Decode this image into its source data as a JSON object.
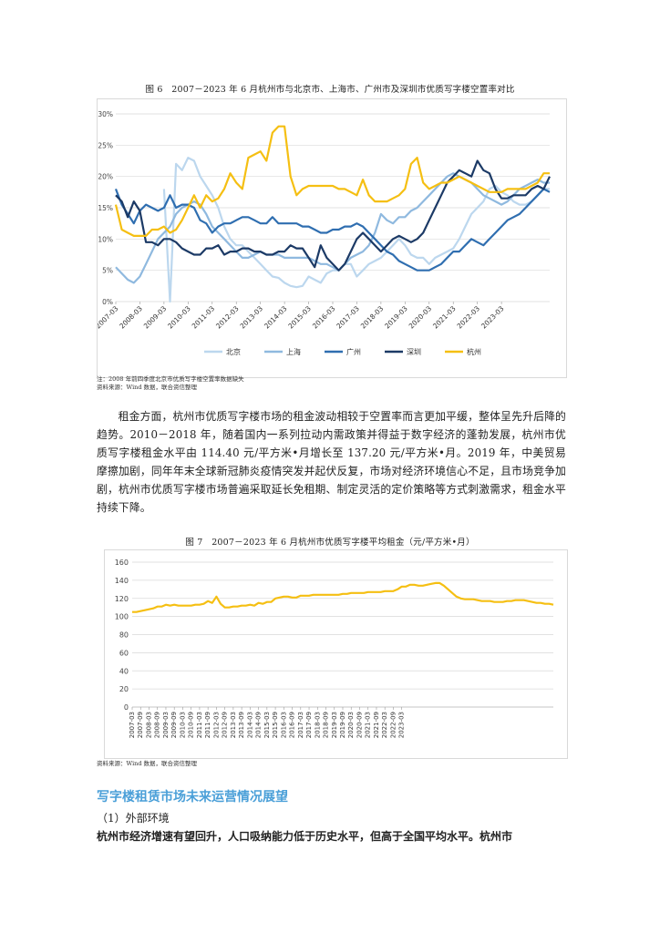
{
  "figure6": {
    "caption": "图 6　2007－2023 年 6 月杭州市与北京市、上海市、广州市及深圳市优质写字楼空置率对比",
    "note1": "注：2008 年前四季度北京市优质写字楼空置率数据缺失",
    "note2": "资料来源：Wind 数据，联合资信整理"
  },
  "paragraph": "租金方面，杭州市优质写字楼市场的租金波动相较于空置率而言更加平缓，整体呈先升后降的趋势。2010－2018 年，随着国内一系列拉动内需政策并得益于数字经济的蓬勃发展，杭州市优质写字楼租金水平由 114.40 元/平方米•月增长至 137.20 元/平方米•月。2019 年，中美贸易摩擦加剧，同年年末全球新冠肺炎疫情突发并起伏反复，市场对经济环境信心不足，且市场竞争加剧，杭州市优质写字楼市场普遍采取延长免租期、制定灵活的定价策略等方式刺激需求，租金水平持续下降。",
  "figure7": {
    "caption": "图 7　2007－2023 年 6 月杭州市优质写字楼平均租金（元/平方米•月）",
    "note": "资料来源：Wind 数据，联合资信整理"
  },
  "section": {
    "title": "写字楼租赁市场未来运营情况展望",
    "sub": "（1）外部环境",
    "bold_line": "杭州市经济增速有望回升，人口吸纳能力低于历史水平，但高于全国平均水平。杭州市"
  },
  "colors": {
    "beijing": "#bcd7ee",
    "shanghai": "#8fb9df",
    "guangzhou": "#2f6eb0",
    "shenzhen": "#1c3a66",
    "hangzhou": "#f5bf12",
    "grid": "#d9d9d9",
    "section": "#4a9fd8"
  },
  "chart_data": [
    {
      "type": "line",
      "title": "图 6　2007－2023 年 6 月杭州市与北京市、上海市、广州市及深圳市优质写字楼空置率对比",
      "ylim": [
        0,
        30
      ],
      "yticks": [
        "0%",
        "5%",
        "10%",
        "15%",
        "20%",
        "25%",
        "30%"
      ],
      "xticks": [
        "2007-03",
        "2008-03",
        "2009-03",
        "2010-03",
        "2011-03",
        "2012-03",
        "2013-03",
        "2014-03",
        "2015-03",
        "2016-03",
        "2017-03",
        "2018-03",
        "2019-03",
        "2020-03",
        "2021-03",
        "2022-03",
        "2023-03"
      ],
      "x_points_per_year": 4,
      "legend": [
        "北京",
        "上海",
        "广州",
        "深圳",
        "杭州"
      ],
      "legend_position": "bottom",
      "series": [
        {
          "name": "北京",
          "values": [
            null,
            null,
            null,
            null,
            null,
            null,
            null,
            null,
            18,
            0,
            22,
            21,
            23,
            22.5,
            20,
            18.5,
            17,
            15,
            12,
            10,
            9,
            9,
            8,
            7,
            6,
            5,
            4,
            3.8,
            3,
            2.5,
            2.3,
            2.5,
            4,
            3.5,
            3,
            4.5,
            5,
            5,
            6,
            6,
            4,
            5,
            6,
            6.5,
            7,
            8,
            9,
            10,
            9,
            7.5,
            7,
            7,
            6,
            7,
            7.5,
            8,
            8.5,
            10,
            12,
            14,
            15,
            16,
            18,
            18.5,
            17.5,
            17,
            16,
            15.5,
            15.5,
            16,
            17,
            18,
            18
          ]
        },
        {
          "name": "上海",
          "values": [
            5.5,
            4.5,
            3.5,
            3,
            4,
            6,
            8,
            10,
            11,
            12,
            14,
            15,
            15.5,
            16,
            15.5,
            14,
            12,
            11,
            10,
            9,
            8,
            7,
            7,
            7.5,
            8,
            7.5,
            7.5,
            7.5,
            7,
            7,
            7,
            7,
            7,
            6.5,
            6,
            6,
            5.5,
            5,
            6,
            7,
            7.5,
            8,
            9,
            11,
            14,
            13,
            12.5,
            13.5,
            13.5,
            14.5,
            15,
            16,
            17,
            18,
            19,
            20,
            20.5,
            20,
            19.5,
            19,
            18,
            17,
            16.5,
            16,
            15.5,
            16,
            17,
            18,
            18.5,
            19,
            19.5,
            19,
            19
          ]
        },
        {
          "name": "广州",
          "values": [
            18,
            15.5,
            14,
            12.5,
            14.5,
            15.5,
            15,
            14.5,
            15,
            17,
            15,
            15.5,
            15.5,
            15,
            13,
            12.5,
            11,
            12,
            12.5,
            12.5,
            13,
            13.5,
            13.5,
            13,
            12.5,
            12.5,
            13.5,
            12.5,
            12.5,
            12.5,
            12.5,
            12,
            12,
            11.5,
            11,
            11,
            11.5,
            11.5,
            12,
            12,
            12.5,
            12,
            11,
            10,
            9,
            8,
            7.5,
            6.5,
            6,
            5.5,
            5,
            5,
            5,
            5.5,
            6,
            7,
            8,
            8,
            9,
            10,
            9.5,
            9,
            10,
            11,
            12,
            13,
            13.5,
            14,
            15,
            16,
            17,
            18,
            17.5
          ]
        },
        {
          "name": "深圳",
          "values": [
            17,
            16,
            13.5,
            16,
            14.5,
            9.5,
            9.5,
            9,
            10,
            10,
            9.5,
            8.5,
            8,
            7.5,
            7.5,
            8.5,
            8.5,
            9,
            7.5,
            8,
            8,
            8.5,
            8.5,
            8,
            8,
            7.5,
            7.5,
            8,
            8,
            9,
            8.5,
            8.5,
            7,
            5.5,
            9,
            7,
            6,
            5,
            6,
            8,
            10,
            11,
            10,
            9,
            8,
            9,
            10,
            10.5,
            10,
            9.5,
            10,
            11,
            13,
            15,
            17,
            19,
            20,
            21,
            20.5,
            20,
            22.5,
            21,
            20.5,
            18,
            16.5,
            16.5,
            17,
            17,
            17,
            18,
            18.5,
            18,
            20
          ]
        },
        {
          "name": "杭州",
          "values": [
            15.5,
            11.5,
            11,
            10.5,
            10.5,
            10.5,
            11.5,
            11.5,
            12,
            11,
            11.5,
            13,
            15,
            17,
            15,
            17,
            16,
            16.5,
            18,
            20.5,
            19,
            18,
            23,
            23.5,
            24,
            22.5,
            27,
            28,
            28,
            20,
            17,
            18,
            18.5,
            18.5,
            18.5,
            18.5,
            18.5,
            18,
            18,
            17.5,
            17,
            19.5,
            17,
            16,
            16,
            16,
            16.5,
            17,
            18,
            22,
            23,
            19,
            18,
            18.5,
            19,
            19,
            19.5,
            20,
            19.5,
            19,
            18.5,
            18,
            17.5,
            17.5,
            17.5,
            18,
            18,
            18,
            18,
            18.5,
            19,
            20.5,
            20.5
          ]
        }
      ]
    },
    {
      "type": "line",
      "title": "图 7　2007－2023 年 6 月杭州市优质写字楼平均租金（元/平方米•月）",
      "ylim": [
        0,
        160
      ],
      "yticks": [
        "0",
        "20",
        "40",
        "60",
        "80",
        "100",
        "120",
        "140",
        "160"
      ],
      "xticks": [
        "2007-03",
        "2007-09",
        "2008-03",
        "2008-09",
        "2009-03",
        "2009-09",
        "2010-03",
        "2010-09",
        "2011-03",
        "2011-09",
        "2012-03",
        "2012-09",
        "2013-03",
        "2013-09",
        "2014-03",
        "2014-09",
        "2015-03",
        "2015-09",
        "2016-03",
        "2016-09",
        "2017-03",
        "2017-09",
        "2018-03",
        "2018-09",
        "2019-03",
        "2019-09",
        "2020-03",
        "2020-09",
        "2021-03",
        "2021-09",
        "2022-03",
        "2022-09",
        "2023-03"
      ],
      "x_points_per_tick": 2,
      "series": [
        {
          "name": "杭州",
          "values": [
            105,
            105,
            106,
            107,
            108,
            109,
            111,
            111,
            113,
            112,
            113,
            112,
            112,
            112,
            112,
            113,
            113,
            114,
            117,
            115,
            122,
            114,
            110,
            110,
            111,
            111,
            112,
            112,
            113,
            112,
            115,
            114,
            116,
            116,
            120,
            121,
            122,
            122,
            121,
            121,
            123,
            123,
            123,
            124,
            124,
            124,
            124,
            124,
            124,
            124,
            125,
            125,
            126,
            126,
            126,
            126,
            127,
            127,
            127,
            127,
            128,
            128,
            128,
            130,
            133,
            133,
            135,
            135,
            134,
            134,
            135,
            136,
            137,
            137,
            134,
            130,
            126,
            122,
            120,
            119,
            119,
            119,
            118,
            117,
            117,
            117,
            116,
            116,
            116,
            117,
            117,
            118,
            118,
            118,
            117,
            116,
            115,
            115,
            114,
            114,
            113
          ]
        }
      ]
    }
  ]
}
